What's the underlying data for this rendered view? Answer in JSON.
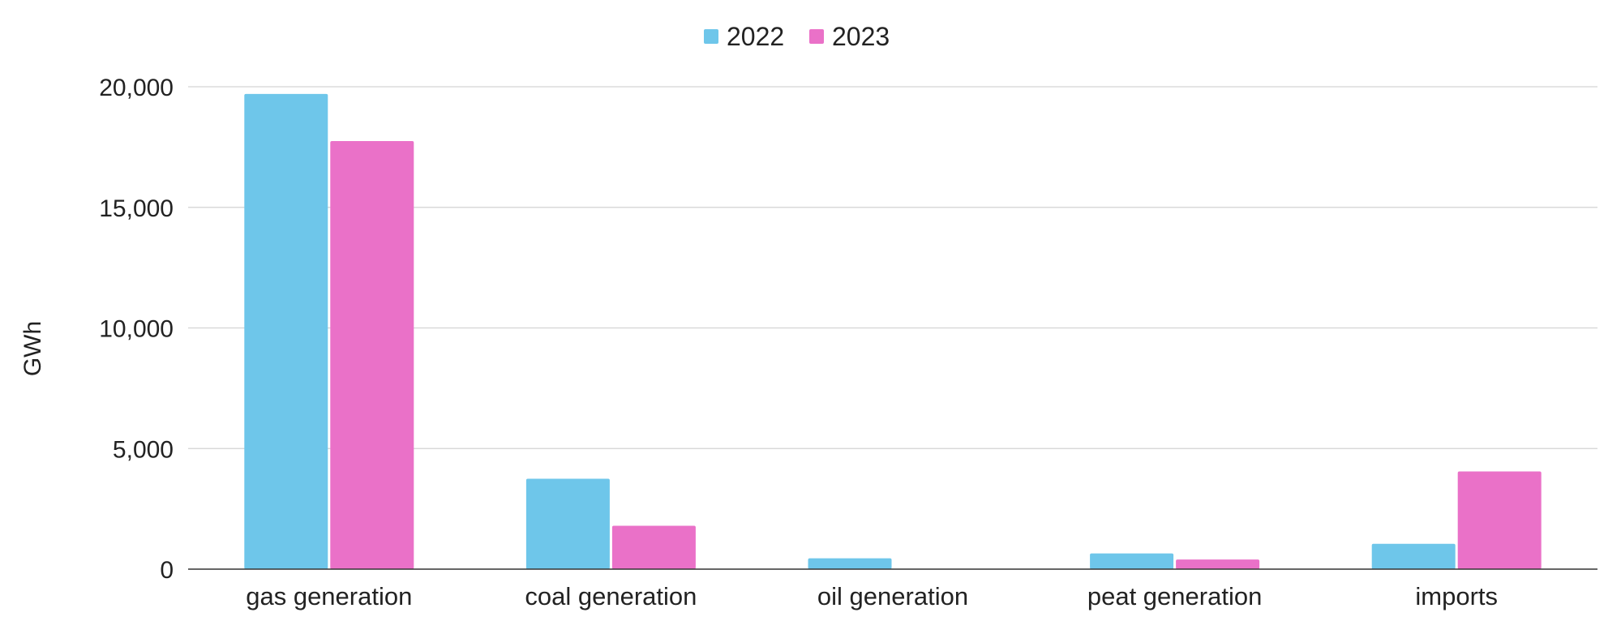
{
  "chart_data": {
    "type": "bar",
    "title": "",
    "xlabel": "",
    "ylabel": "GWh",
    "ylim": [
      0,
      20000
    ],
    "yticks": [
      0,
      5000,
      10000,
      15000,
      20000
    ],
    "ytick_labels": [
      "0",
      "5,000",
      "10,000",
      "15,000",
      "20,000"
    ],
    "grid": true,
    "legend_position": "top-center",
    "categories": [
      "gas generation",
      "coal generation",
      "oil generation",
      "peat generation",
      "imports"
    ],
    "series": [
      {
        "name": "2022",
        "color": "#6ec6ea",
        "values": [
          19700,
          3750,
          450,
          650,
          1050
        ]
      },
      {
        "name": "2023",
        "color": "#ea71c8",
        "values": [
          17750,
          1800,
          0,
          400,
          4050
        ]
      }
    ]
  }
}
